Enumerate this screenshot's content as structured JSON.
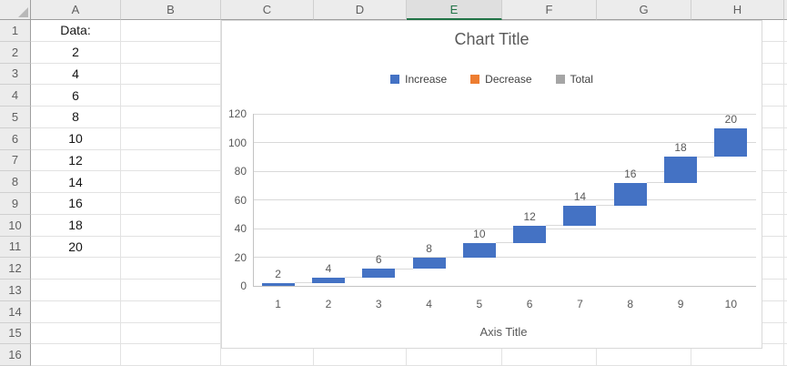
{
  "spreadsheet": {
    "col_headers": [
      "A",
      "B",
      "C",
      "D",
      "E",
      "F",
      "G",
      "H"
    ],
    "selected_column": "E",
    "row_count": 16,
    "column_a": [
      "Data:",
      "2",
      "4",
      "6",
      "8",
      "10",
      "12",
      "14",
      "16",
      "18",
      "20"
    ],
    "colors": {
      "selected_header_accent": "#217346",
      "header_bg": "#ececec",
      "gridline": "#e2e2e2"
    }
  },
  "chart_data": {
    "type": "bar",
    "subtype": "waterfall",
    "title": "Chart Title",
    "xlabel": "Axis Title",
    "ylabel": "",
    "categories": [
      "1",
      "2",
      "3",
      "4",
      "5",
      "6",
      "7",
      "8",
      "9",
      "10"
    ],
    "values": [
      2,
      4,
      6,
      8,
      10,
      12,
      14,
      16,
      18,
      20
    ],
    "data_labels": [
      "2",
      "4",
      "6",
      "8",
      "10",
      "12",
      "14",
      "16",
      "18",
      "20"
    ],
    "cumulative_ends": [
      2,
      6,
      12,
      20,
      30,
      42,
      56,
      72,
      90,
      110
    ],
    "ylim": [
      0,
      120
    ],
    "yticks": [
      0,
      20,
      40,
      60,
      80,
      100,
      120
    ],
    "grid": true,
    "legend_position": "top",
    "legend": [
      {
        "label": "Increase",
        "color": "#4472c4"
      },
      {
        "label": "Decrease",
        "color": "#ed7d31"
      },
      {
        "label": "Total",
        "color": "#a5a5a5"
      }
    ],
    "colors": {
      "increase": "#4472c4",
      "decrease": "#ed7d31",
      "total": "#a5a5a5",
      "gridline": "#d9d9d9",
      "axis_line": "#c3c3c3",
      "text": "#595959"
    }
  }
}
